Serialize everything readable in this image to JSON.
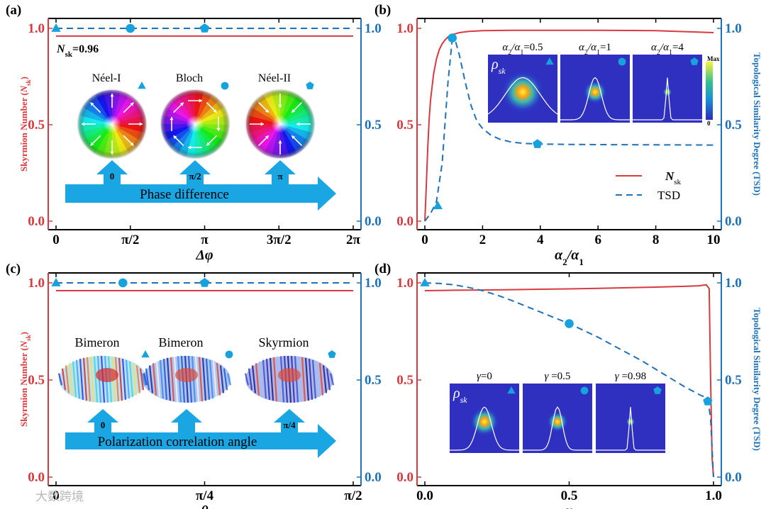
{
  "colors": {
    "red": "#d83a40",
    "blue": "#1f71b8",
    "marker": "#17a2dd",
    "arrow": "#1aa5e3"
  },
  "chart_data": [
    {
      "id": "a",
      "type": "line",
      "panel_label": "(a)",
      "xlabel": "Δφ",
      "ylabel_left": "Skyrmion Number (Nsk)",
      "ylabel_left_main": "Skyrmion Number (",
      "ylabel_left_sym": "N",
      "ylabel_left_sub": "sk",
      "ylabel_left_tail": ")",
      "xlim": [
        0,
        6.2832
      ],
      "ylim": [
        0,
        1
      ],
      "xticks": [
        0,
        1.5708,
        3.1416,
        4.7124,
        6.2832
      ],
      "xtick_labels": [
        "0",
        "π/2",
        "π",
        "3π/2",
        "2π"
      ],
      "yticks": [
        0,
        0.5,
        1
      ],
      "ytick_labels": [
        "0.0",
        "0.5",
        "1.0"
      ],
      "series": [
        {
          "name": "Nsk",
          "style": "solid",
          "x": [
            0,
            6.2832
          ],
          "y": [
            0.96,
            0.96
          ]
        },
        {
          "name": "TSD",
          "style": "dashed",
          "x": [
            0,
            6.2832
          ],
          "y": [
            1.0,
            1.0
          ]
        }
      ],
      "markers": [
        {
          "shape": "triangle",
          "x": 0,
          "y": 1.0
        },
        {
          "shape": "circle",
          "x": 1.5708,
          "y": 1.0
        },
        {
          "shape": "pentagon",
          "x": 3.1416,
          "y": 1.0
        }
      ],
      "annotation": {
        "sym": "N",
        "sub": "sk",
        "value": "=0.96"
      },
      "insets": [
        {
          "label": "Néel-I",
          "phase": "0",
          "marker": "triangle"
        },
        {
          "label": "Bloch",
          "phase": "π/2",
          "marker": "circle"
        },
        {
          "label": "Néel-II",
          "phase": "π",
          "marker": "pentagon"
        }
      ],
      "arrow_label": "Phase difference"
    },
    {
      "id": "b",
      "type": "line",
      "panel_label": "(b)",
      "xlabel": "α2/α1",
      "xlabel_parts": [
        "α",
        "2",
        "/α",
        "1"
      ],
      "ylabel_right": "Topological Similarity Degree (TSD)",
      "xlim": [
        0,
        10
      ],
      "ylim": [
        0,
        1
      ],
      "xticks": [
        0,
        2,
        4,
        6,
        8,
        10
      ],
      "xtick_labels": [
        "0",
        "2",
        "4",
        "6",
        "8",
        "10"
      ],
      "yticks": [
        0,
        0.5,
        1
      ],
      "ytick_labels": [
        "0.0",
        "0.5",
        "1.0"
      ],
      "series": [
        {
          "name": "Nsk",
          "style": "solid",
          "x": [
            0,
            0.05,
            0.1,
            0.15,
            0.2,
            0.3,
            0.4,
            0.5,
            0.6,
            0.7,
            0.8,
            0.9,
            1.0,
            1.2,
            1.5,
            2,
            3,
            4,
            6,
            8,
            10
          ],
          "y": [
            0,
            0.18,
            0.38,
            0.53,
            0.63,
            0.76,
            0.84,
            0.89,
            0.92,
            0.94,
            0.955,
            0.965,
            0.97,
            0.978,
            0.984,
            0.988,
            0.99,
            0.99,
            0.99,
            0.988,
            0.978
          ]
        },
        {
          "name": "TSD",
          "style": "dashed",
          "x": [
            0,
            0.2,
            0.4,
            0.6,
            0.8,
            0.95,
            1.05,
            1.2,
            1.4,
            1.6,
            1.8,
            2.0,
            2.3,
            2.6,
            3.0,
            3.5,
            4.0,
            5,
            6,
            8,
            10
          ],
          "y": [
            0,
            0.04,
            0.1,
            0.3,
            0.72,
            0.945,
            0.94,
            0.86,
            0.72,
            0.6,
            0.52,
            0.48,
            0.445,
            0.425,
            0.41,
            0.403,
            0.4,
            0.398,
            0.397,
            0.396,
            0.395
          ]
        }
      ],
      "markers": [
        {
          "shape": "triangle",
          "x": 0.45,
          "y": 0.08
        },
        {
          "shape": "circle",
          "x": 0.95,
          "y": 0.95
        },
        {
          "shape": "pentagon",
          "x": 3.9,
          "y": 0.4
        }
      ],
      "legend": [
        {
          "sym": "N",
          "sub": "sk",
          "style": "solid"
        },
        {
          "sym": "TSD",
          "sub": "",
          "style": "dashed"
        }
      ],
      "legend_position": "lower-right",
      "inset_symbol": "ρ",
      "inset_symbol_sub": "sk",
      "insets": [
        {
          "title": "α2/α1=0.5",
          "parts": [
            "α",
            "2",
            "/α",
            "1",
            "=0.5"
          ],
          "marker": "triangle"
        },
        {
          "title": "α2/α1=1",
          "parts": [
            "α",
            "2",
            "/α",
            "1",
            "=1"
          ],
          "marker": "circle"
        },
        {
          "title": "α2/α1=4",
          "parts": [
            "α",
            "2",
            "/α",
            "1",
            "=4"
          ],
          "marker": "pentagon"
        }
      ],
      "colorbar": {
        "max_label": "Max",
        "min_label": "0"
      }
    },
    {
      "id": "c",
      "type": "line",
      "panel_label": "(c)",
      "xlabel": "θ",
      "ylabel_left": "Skyrmion Number (Nsk)",
      "ylabel_left_main": "Skyrmion Number (",
      "ylabel_left_sym": "N",
      "ylabel_left_sub": "sk",
      "ylabel_left_tail": ")",
      "xlim": [
        0,
        1.5708
      ],
      "ylim": [
        0,
        1
      ],
      "xticks": [
        0,
        0.7854,
        1.5708
      ],
      "xtick_labels": [
        "0",
        "π/4",
        "π/2"
      ],
      "yticks": [
        0,
        0.5,
        1
      ],
      "ytick_labels": [
        "0.0",
        "0.5",
        "1.0"
      ],
      "series": [
        {
          "name": "Nsk",
          "style": "solid",
          "x": [
            0,
            1.5708
          ],
          "y": [
            0.96,
            0.96
          ]
        },
        {
          "name": "TSD",
          "style": "dashed",
          "x": [
            0,
            1.5708
          ],
          "y": [
            1.0,
            1.0
          ]
        }
      ],
      "markers": [
        {
          "shape": "triangle",
          "x": 0,
          "y": 1.0
        },
        {
          "shape": "circle",
          "x": 0.3534,
          "y": 1.0
        },
        {
          "shape": "pentagon",
          "x": 0.7854,
          "y": 1.0
        }
      ],
      "insets": [
        {
          "label": "Bimeron",
          "angle": "0",
          "marker": "triangle"
        },
        {
          "label": "Bimeron",
          "angle": "",
          "marker": "circle"
        },
        {
          "label": "Skyrmion",
          "angle": "π/4",
          "marker": "pentagon"
        }
      ],
      "arrow_label": "Polarization correlation angle"
    },
    {
      "id": "d",
      "type": "line",
      "panel_label": "(d)",
      "xlabel": "γ",
      "ylabel_right": "Topological Similarity Degree (TSD)",
      "xlim": [
        0,
        1
      ],
      "ylim": [
        0,
        1
      ],
      "xticks": [
        0,
        0.5,
        1
      ],
      "xtick_labels": [
        "0.0",
        "0.5",
        "1.0"
      ],
      "yticks": [
        0,
        0.5,
        1
      ],
      "ytick_labels": [
        "0.0",
        "0.5",
        "1.0"
      ],
      "series": [
        {
          "name": "Nsk",
          "style": "solid",
          "x": [
            0,
            0.1,
            0.2,
            0.3,
            0.4,
            0.5,
            0.6,
            0.7,
            0.8,
            0.9,
            0.95,
            0.975,
            0.985,
            0.99,
            0.995,
            1.0
          ],
          "y": [
            0.96,
            0.962,
            0.963,
            0.965,
            0.967,
            0.969,
            0.972,
            0.975,
            0.978,
            0.982,
            0.985,
            0.99,
            0.97,
            0.5,
            0.1,
            0
          ]
        },
        {
          "name": "TSD",
          "style": "dashed",
          "x": [
            0,
            0.05,
            0.1,
            0.15,
            0.2,
            0.25,
            0.3,
            0.35,
            0.4,
            0.45,
            0.5,
            0.55,
            0.6,
            0.65,
            0.7,
            0.75,
            0.8,
            0.85,
            0.9,
            0.95,
            0.98,
            0.99,
            1.0
          ],
          "y": [
            1.0,
            0.997,
            0.99,
            0.977,
            0.96,
            0.937,
            0.91,
            0.88,
            0.85,
            0.82,
            0.79,
            0.755,
            0.72,
            0.68,
            0.64,
            0.6,
            0.555,
            0.51,
            0.465,
            0.425,
            0.405,
            0.3,
            0
          ]
        }
      ],
      "markers": [
        {
          "shape": "triangle",
          "x": 0,
          "y": 1.0
        },
        {
          "shape": "circle",
          "x": 0.5,
          "y": 0.79
        },
        {
          "shape": "pentagon",
          "x": 0.98,
          "y": 0.39
        }
      ],
      "inset_symbol": "ρ",
      "inset_symbol_sub": "sk",
      "insets": [
        {
          "title": "γ=0",
          "parts": [
            "γ",
            "",
            "",
            "",
            "=0"
          ],
          "marker": "triangle"
        },
        {
          "title": "γ =0.5",
          "parts": [
            "γ",
            "",
            " ",
            "",
            "=0.5"
          ],
          "marker": "circle"
        },
        {
          "title": "γ =0.98",
          "parts": [
            "γ",
            "",
            " ",
            "",
            "=0.98"
          ],
          "marker": "pentagon"
        }
      ]
    }
  ],
  "watermark": "大数跨境"
}
